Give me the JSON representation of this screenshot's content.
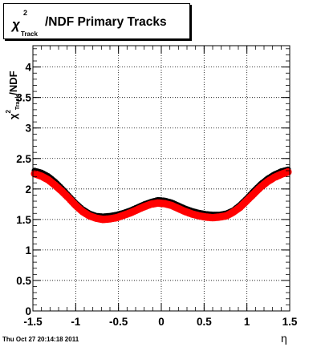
{
  "chart_data": {
    "type": "scatter",
    "title": "/NDF  Primary Tracks",
    "title_prefix": "χ",
    "title_superscript": "2",
    "title_subscript": "Track",
    "ylabel_prefix": "χ",
    "ylabel_superscript": "2",
    "ylabel_subscript": "Track",
    "ylabel_suffix": "/NDF",
    "xlabel": "η",
    "xlim": [
      -1.5,
      1.5
    ],
    "ylim": [
      0,
      4.35
    ],
    "x_ticks": [
      -1.5,
      -1,
      -0.5,
      0,
      0.5,
      1,
      1.5
    ],
    "x_tick_labels": [
      "-1.5",
      "-1",
      "-0.5",
      "0",
      "0.5",
      "1",
      "1.5"
    ],
    "y_ticks": [
      0,
      0.5,
      1,
      1.5,
      2,
      2.5,
      3,
      3.5,
      4
    ],
    "y_tick_labels": [
      "0",
      "0.5",
      "1",
      "1.5",
      "2",
      "2.5",
      "3",
      "3.5",
      "4"
    ],
    "grid": true,
    "series": [
      {
        "color": "#000000",
        "x": [
          -1.48,
          -1.4,
          -1.32,
          -1.24,
          -1.16,
          -1.08,
          -1.0,
          -0.92,
          -0.84,
          -0.76,
          -0.68,
          -0.6,
          -0.52,
          -0.44,
          -0.36,
          -0.28,
          -0.2,
          -0.12,
          -0.04,
          0.04,
          0.12,
          0.2,
          0.28,
          0.36,
          0.44,
          0.52,
          0.6,
          0.68,
          0.76,
          0.84,
          0.92,
          1.0,
          1.08,
          1.16,
          1.24,
          1.32,
          1.4,
          1.48
        ],
        "y": [
          2.3,
          2.27,
          2.21,
          2.12,
          2.01,
          1.89,
          1.77,
          1.67,
          1.6,
          1.56,
          1.55,
          1.56,
          1.58,
          1.61,
          1.65,
          1.7,
          1.75,
          1.79,
          1.82,
          1.81,
          1.78,
          1.73,
          1.68,
          1.64,
          1.61,
          1.59,
          1.58,
          1.58,
          1.6,
          1.65,
          1.74,
          1.85,
          1.97,
          2.08,
          2.17,
          2.24,
          2.29,
          2.32
        ]
      },
      {
        "color": "#ff0000",
        "x": [
          -1.48,
          -1.4,
          -1.32,
          -1.24,
          -1.16,
          -1.08,
          -1.0,
          -0.92,
          -0.84,
          -0.76,
          -0.68,
          -0.6,
          -0.52,
          -0.44,
          -0.36,
          -0.28,
          -0.2,
          -0.12,
          -0.04,
          0.04,
          0.12,
          0.2,
          0.28,
          0.36,
          0.44,
          0.52,
          0.6,
          0.68,
          0.76,
          0.84,
          0.92,
          1.0,
          1.08,
          1.16,
          1.24,
          1.32,
          1.4,
          1.48
        ],
        "y": [
          2.25,
          2.21,
          2.15,
          2.06,
          1.96,
          1.85,
          1.73,
          1.63,
          1.56,
          1.52,
          1.5,
          1.51,
          1.53,
          1.57,
          1.61,
          1.66,
          1.71,
          1.75,
          1.77,
          1.76,
          1.73,
          1.68,
          1.63,
          1.59,
          1.56,
          1.54,
          1.53,
          1.54,
          1.56,
          1.62,
          1.7,
          1.81,
          1.92,
          2.03,
          2.12,
          2.19,
          2.24,
          2.28
        ]
      }
    ]
  },
  "footer": {
    "timestamp": "Thu Oct 27 20:14:18 2011"
  }
}
